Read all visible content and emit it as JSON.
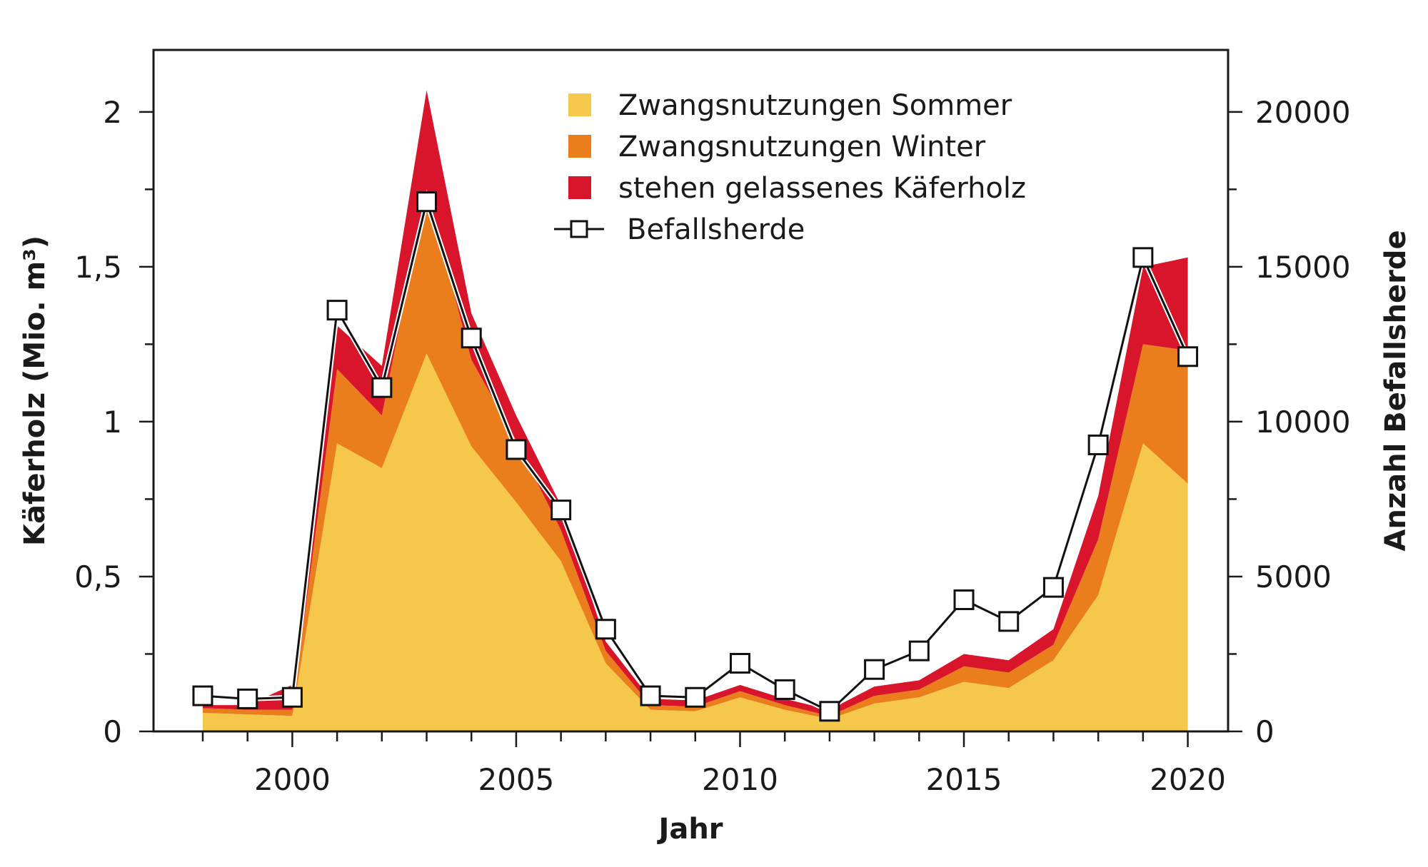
{
  "chart_data": {
    "type": "area",
    "x": [
      1998,
      1999,
      2000,
      2001,
      2002,
      2003,
      2004,
      2005,
      2006,
      2007,
      2008,
      2009,
      2010,
      2011,
      2012,
      2013,
      2014,
      2015,
      2016,
      2017,
      2018,
      2019,
      2020
    ],
    "series": [
      {
        "name": "Zwangsnutzungen Sommer",
        "color": "#f5c84c",
        "axis": "left",
        "values": [
          0.06,
          0.055,
          0.05,
          0.93,
          0.85,
          1.22,
          0.92,
          0.74,
          0.55,
          0.22,
          0.07,
          0.065,
          0.11,
          0.07,
          0.04,
          0.09,
          0.11,
          0.16,
          0.14,
          0.23,
          0.44,
          0.93,
          0.8
        ]
      },
      {
        "name": "Zwangsnutzungen Winter",
        "color": "#ea7e1d",
        "axis": "left",
        "values": [
          0.015,
          0.015,
          0.02,
          0.24,
          0.17,
          0.53,
          0.28,
          0.2,
          0.1,
          0.04,
          0.015,
          0.015,
          0.02,
          0.015,
          0.01,
          0.025,
          0.025,
          0.05,
          0.05,
          0.05,
          0.18,
          0.32,
          0.43
        ]
      },
      {
        "name": "stehen gelassenes Käferholz",
        "color": "#d8152a",
        "axis": "left",
        "values": [
          0.01,
          0.015,
          0.08,
          0.14,
          0.16,
          0.32,
          0.15,
          0.08,
          0.08,
          0.03,
          0.02,
          0.02,
          0.02,
          0.02,
          0.02,
          0.03,
          0.03,
          0.04,
          0.04,
          0.05,
          0.14,
          0.25,
          0.3
        ]
      },
      {
        "name": "Befallsherde",
        "type": "line",
        "axis": "right",
        "values": [
          1150,
          1050,
          1100,
          13600,
          11100,
          17100,
          12700,
          9100,
          7150,
          3300,
          1150,
          1100,
          2200,
          1350,
          650,
          2000,
          2600,
          4250,
          3550,
          4650,
          9250,
          15300,
          12100
        ]
      }
    ],
    "xlabel": "Jahr",
    "ylabel": "Käferholz (Mio. m³)",
    "y2label": "Anzahl Befallsherde",
    "xlim": [
      1996.9,
      2020.9
    ],
    "ylim": [
      0,
      2.2
    ],
    "y2lim": [
      0,
      22000
    ],
    "xticks": [
      {
        "value": 2000,
        "label": "2000"
      },
      {
        "value": 2005,
        "label": "2005"
      },
      {
        "value": 2010,
        "label": "2010"
      },
      {
        "value": 2015,
        "label": "2015"
      },
      {
        "value": 2020,
        "label": "2020"
      }
    ],
    "yticks": [
      {
        "value": 0,
        "label": "0"
      },
      {
        "value": 0.5,
        "label": "0,5"
      },
      {
        "value": 1,
        "label": "1"
      },
      {
        "value": 1.5,
        "label": "1,5"
      },
      {
        "value": 2,
        "label": "2"
      }
    ],
    "y2ticks": [
      {
        "value": 0,
        "label": "0"
      },
      {
        "value": 5000,
        "label": "5000"
      },
      {
        "value": 10000,
        "label": "10000"
      },
      {
        "value": 15000,
        "label": "15000"
      },
      {
        "value": 20000,
        "label": "20000"
      }
    ],
    "grid": false,
    "legend": "top-center"
  }
}
